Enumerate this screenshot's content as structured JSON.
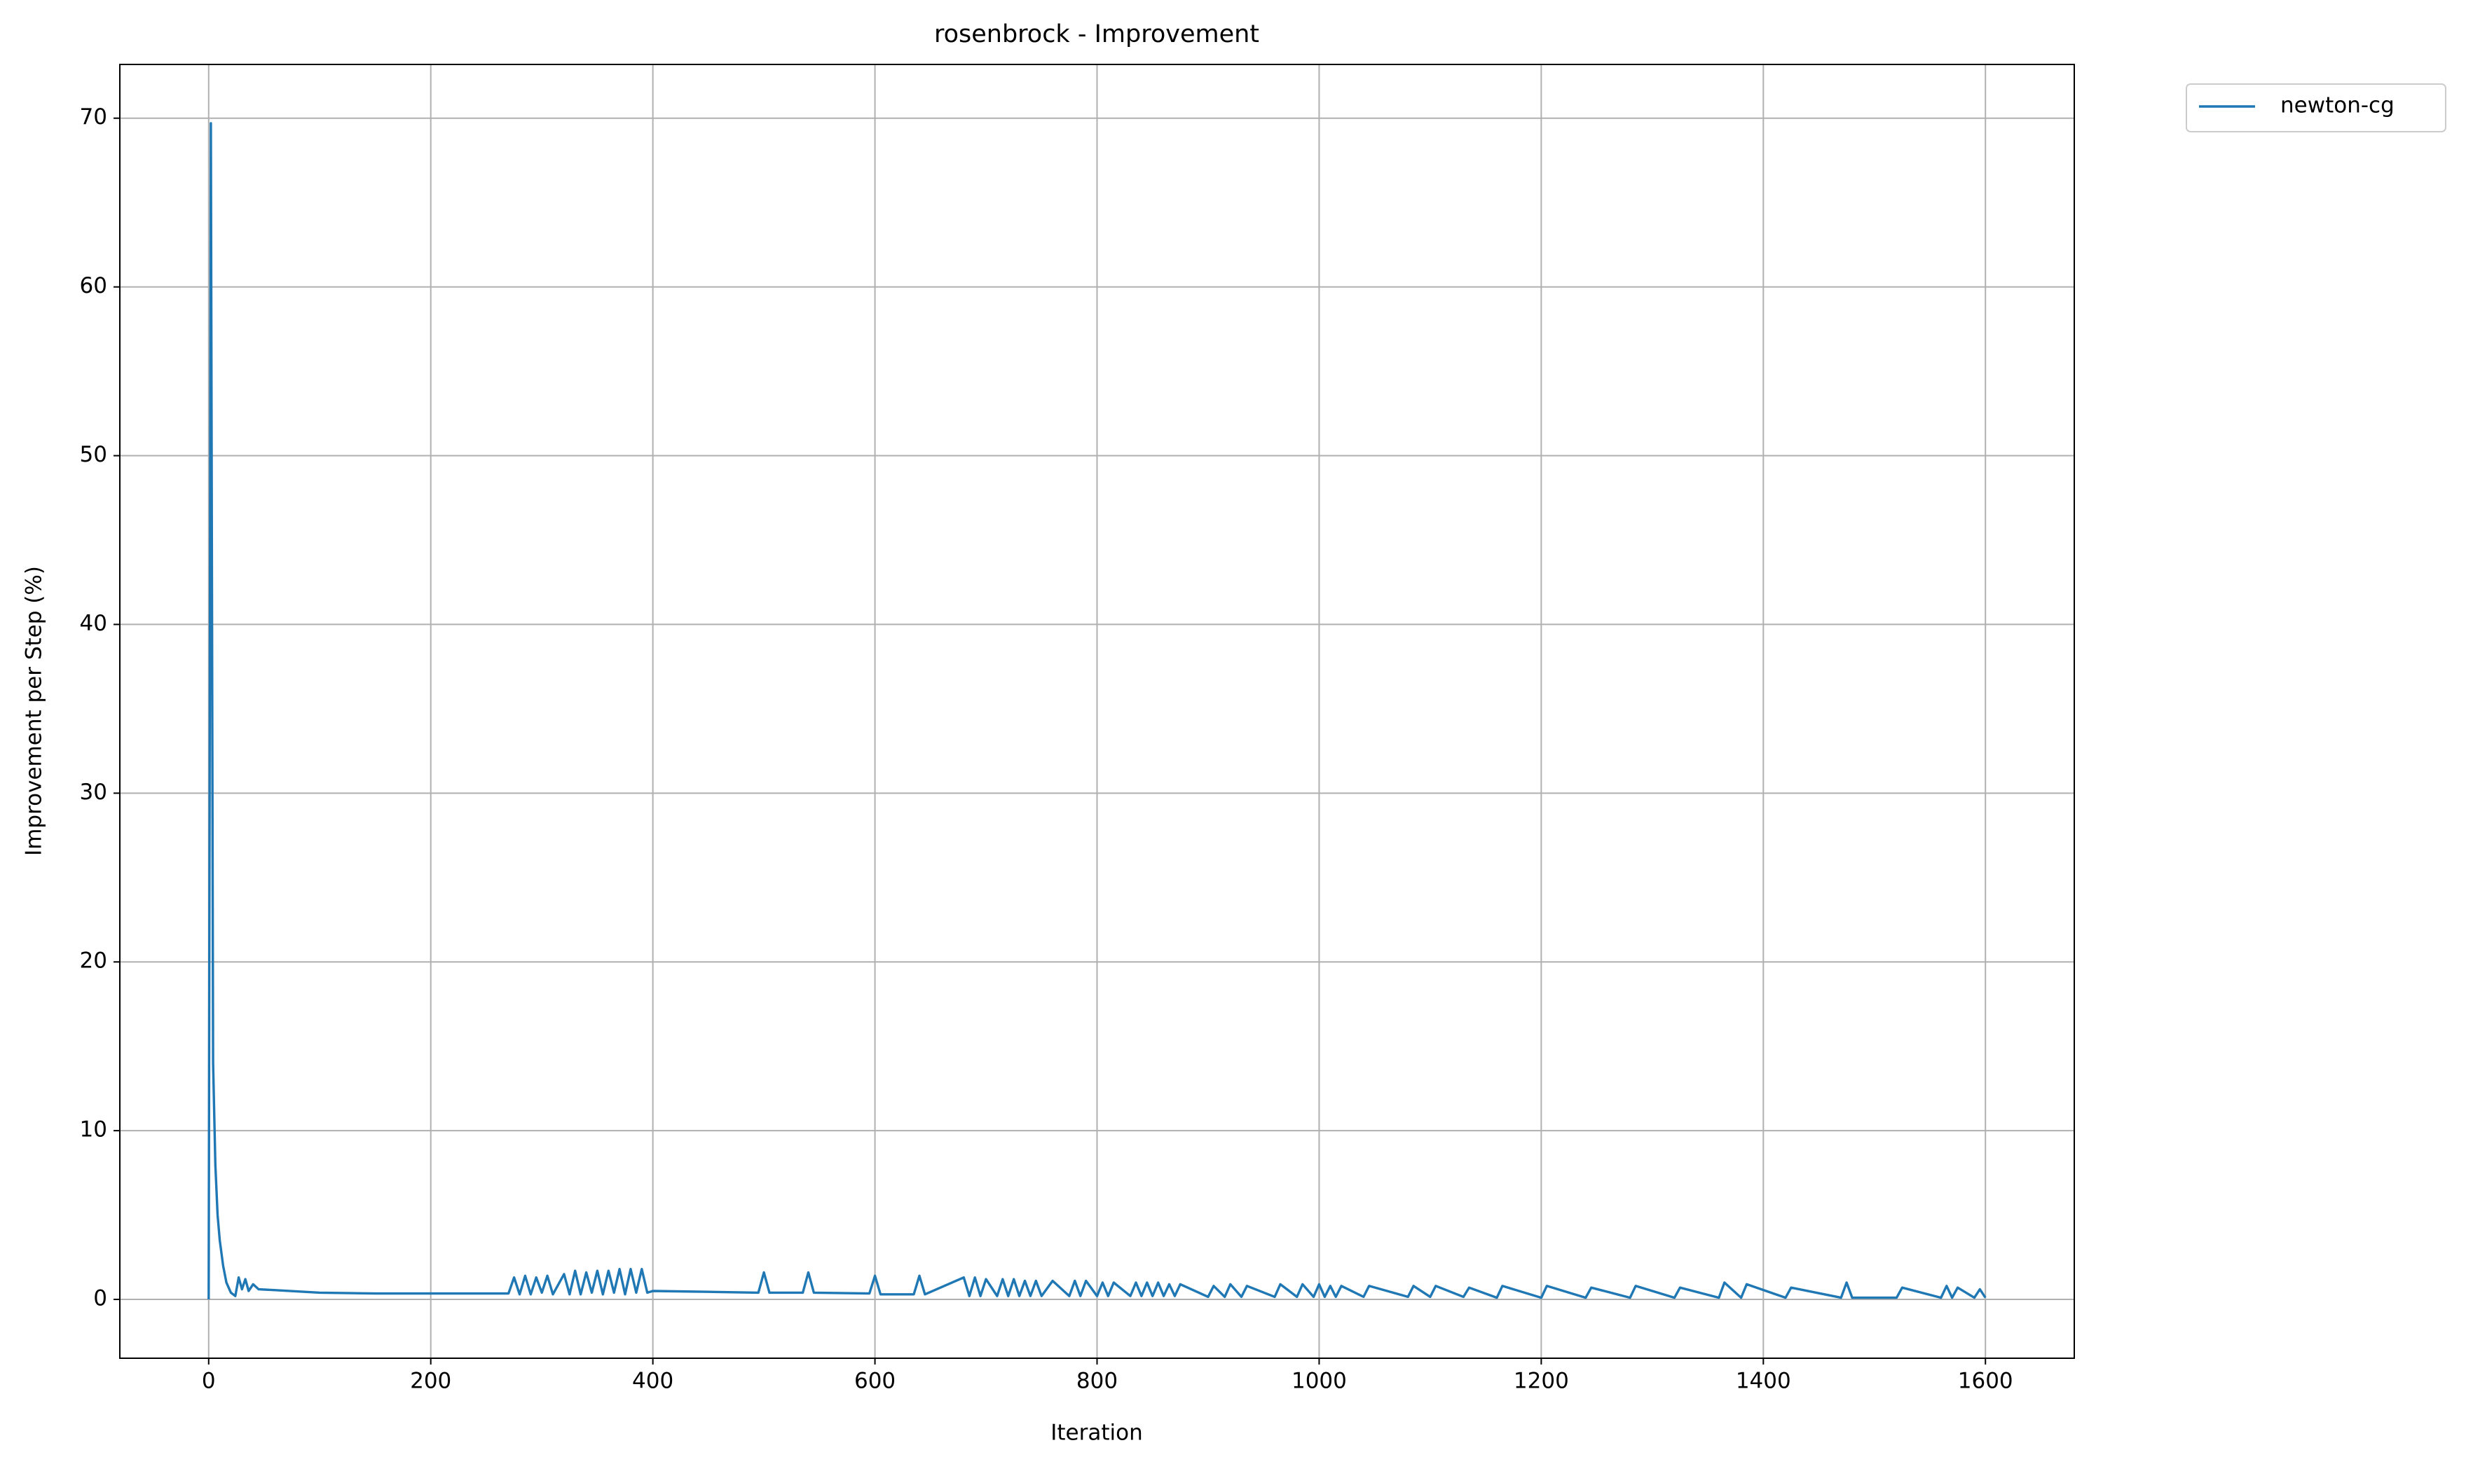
{
  "chart_data": {
    "type": "line",
    "title": "rosenbrock - Improvement",
    "x_label": "Iteration",
    "y_label": "Improvement per Step (%)",
    "xlim": [
      -80,
      1680
    ],
    "ylim": [
      -3.485,
      73.185
    ],
    "xticks": [
      0,
      200,
      400,
      600,
      800,
      1000,
      1200,
      1400,
      1600
    ],
    "yticks": [
      0,
      10,
      20,
      30,
      40,
      50,
      60,
      70
    ],
    "grid": true,
    "legend": "outside upper right",
    "x": [
      0,
      2,
      4,
      6,
      8,
      10,
      13,
      16,
      20,
      24,
      27,
      30,
      33,
      36,
      40,
      45,
      60,
      100,
      150,
      200,
      270,
      275,
      280,
      285,
      290,
      295,
      300,
      305,
      310,
      320,
      325,
      330,
      335,
      340,
      345,
      350,
      355,
      360,
      365,
      370,
      375,
      380,
      385,
      390,
      395,
      400,
      450,
      495,
      500,
      505,
      535,
      540,
      545,
      595,
      600,
      605,
      635,
      640,
      645,
      680,
      685,
      690,
      695,
      700,
      710,
      715,
      720,
      725,
      730,
      735,
      740,
      745,
      750,
      760,
      775,
      780,
      785,
      790,
      800,
      805,
      810,
      815,
      830,
      835,
      840,
      845,
      850,
      855,
      860,
      865,
      870,
      875,
      900,
      905,
      915,
      920,
      930,
      935,
      960,
      965,
      980,
      985,
      995,
      1000,
      1005,
      1010,
      1015,
      1020,
      1040,
      1045,
      1080,
      1085,
      1100,
      1105,
      1130,
      1135,
      1160,
      1165,
      1200,
      1205,
      1240,
      1245,
      1280,
      1285,
      1320,
      1325,
      1360,
      1365,
      1380,
      1385,
      1420,
      1425,
      1470,
      1475,
      1480,
      1520,
      1525,
      1560,
      1565,
      1570,
      1575,
      1590,
      1595,
      1600
    ],
    "series": [
      {
        "name": "newton-cg",
        "color": "#1f77b4",
        "values": [
          0,
          69.7,
          14,
          8,
          5,
          3.5,
          2,
          1,
          0.4,
          0.2,
          1.3,
          0.6,
          1.2,
          0.5,
          0.9,
          0.6,
          0.55,
          0.4,
          0.35,
          0.35,
          0.35,
          1.3,
          0.3,
          1.4,
          0.3,
          1.3,
          0.4,
          1.4,
          0.3,
          1.5,
          0.3,
          1.7,
          0.3,
          1.6,
          0.4,
          1.7,
          0.3,
          1.7,
          0.4,
          1.8,
          0.3,
          1.8,
          0.4,
          1.8,
          0.4,
          0.5,
          0.45,
          0.4,
          1.6,
          0.4,
          0.4,
          1.6,
          0.4,
          0.35,
          1.4,
          0.3,
          0.3,
          1.4,
          0.3,
          1.3,
          0.2,
          1.3,
          0.2,
          1.2,
          0.2,
          1.2,
          0.2,
          1.2,
          0.2,
          1.1,
          0.2,
          1.1,
          0.2,
          1.1,
          0.2,
          1.1,
          0.2,
          1.1,
          0.2,
          1.0,
          0.2,
          1.0,
          0.2,
          1.0,
          0.2,
          1.0,
          0.2,
          1.0,
          0.2,
          0.9,
          0.2,
          0.9,
          0.15,
          0.8,
          0.15,
          0.9,
          0.15,
          0.8,
          0.15,
          0.9,
          0.15,
          0.9,
          0.15,
          0.9,
          0.15,
          0.8,
          0.15,
          0.8,
          0.15,
          0.8,
          0.15,
          0.8,
          0.15,
          0.8,
          0.15,
          0.7,
          0.1,
          0.8,
          0.1,
          0.8,
          0.1,
          0.7,
          0.1,
          0.8,
          0.1,
          0.7,
          0.1,
          1.0,
          0.1,
          0.9,
          0.1,
          0.7,
          0.1,
          1.0,
          0.1,
          0.1,
          0.7,
          0.1,
          0.8,
          0.1,
          0.7,
          0.1,
          0.6,
          0.1
        ]
      }
    ]
  }
}
